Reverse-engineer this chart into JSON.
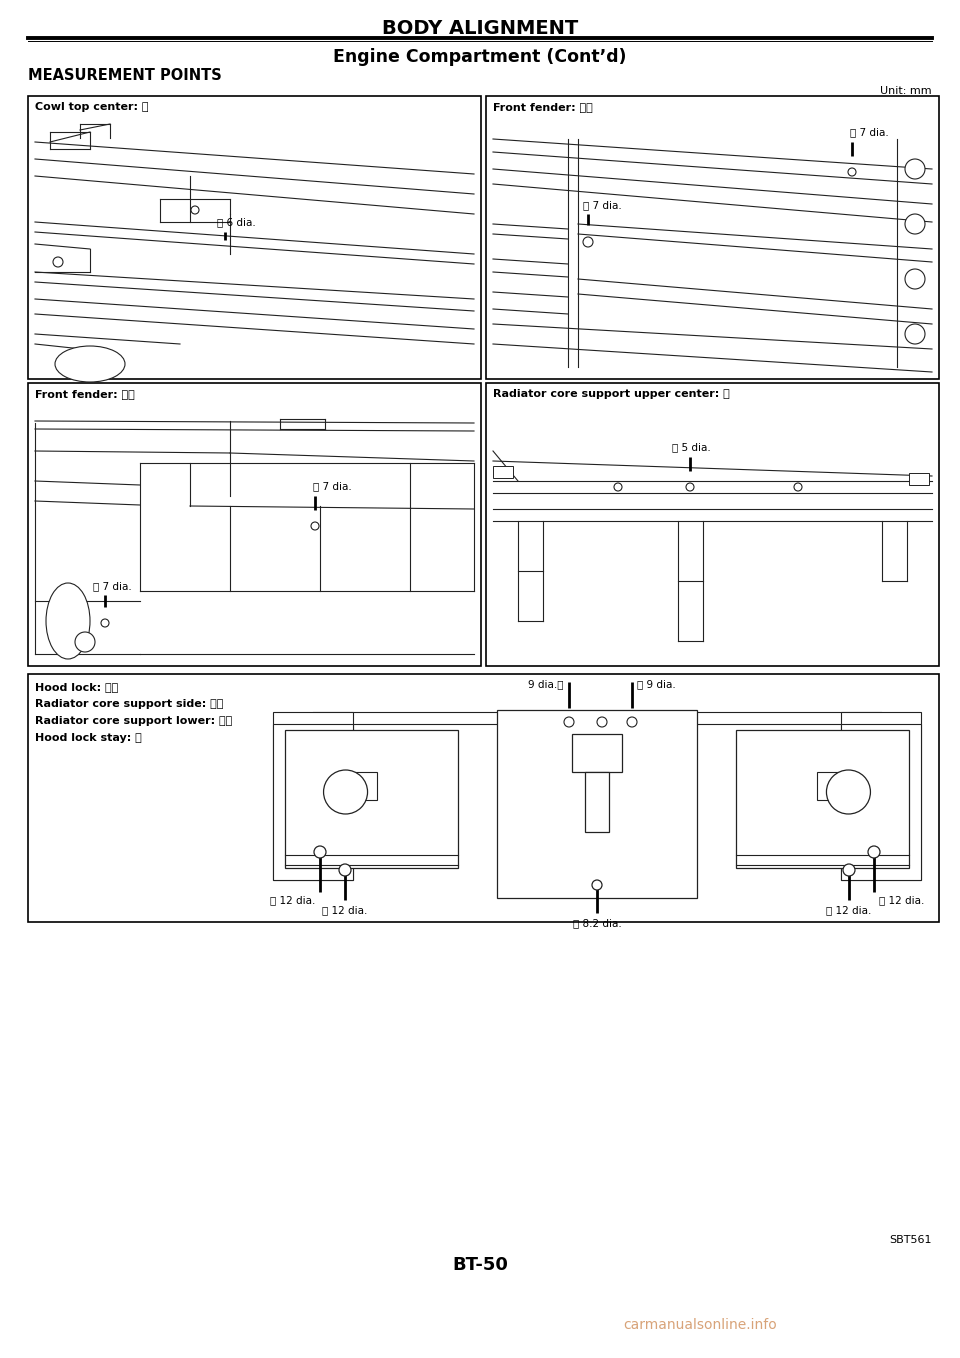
{
  "title": "BODY ALIGNMENT",
  "subtitle": "Engine Compartment (Cont’d)",
  "section_title": "MEASUREMENT POINTS",
  "unit_text": "Unit: mm",
  "page_num": "BT-50",
  "ref_code": "SBT561",
  "watermark": "carmanualsonline.info",
  "bg_color": "#ffffff",
  "panel_tl_label": "Cowl top center: Ⓐ",
  "panel_tr_label": "Front fender: ⓓⒺ",
  "panel_bl_label": "Front fender: ⒷⒸ",
  "panel_br_label": "Radiator core support upper center: Ⓕ",
  "bottom_panel_labels": [
    "Hood lock: Ⓖⓖ",
    "Radiator core support side: Ⓗⓗ",
    "Radiator core support lower: Ⓘⓘ",
    "Hood lock stay: Ⓙ"
  ]
}
